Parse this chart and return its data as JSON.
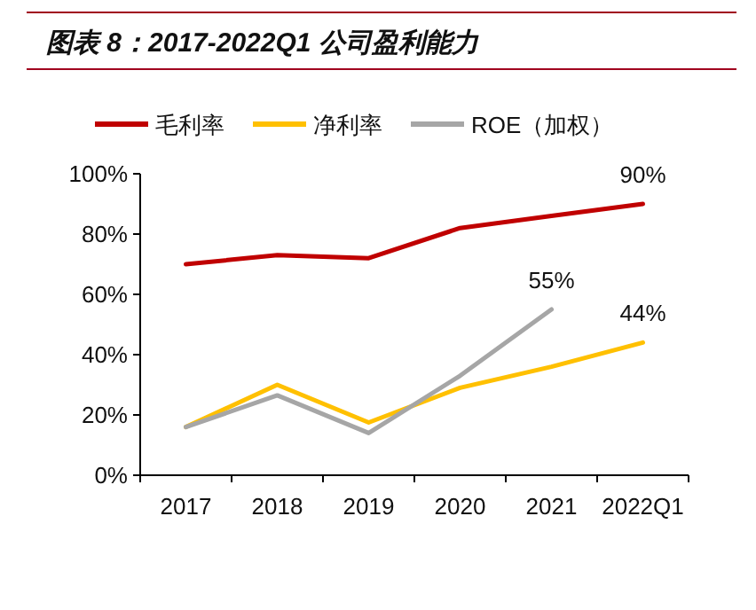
{
  "chart_data": {
    "type": "line",
    "title": "图表 8：2017-2022Q1 公司盈利能力",
    "categories": [
      "2017",
      "2018",
      "2019",
      "2020",
      "2021",
      "2022Q1"
    ],
    "series": [
      {
        "name": "毛利率",
        "color": "#c00000",
        "values": [
          70,
          73,
          72,
          82,
          86,
          90
        ]
      },
      {
        "name": "净利率",
        "color": "#ffc000",
        "values": [
          16,
          30,
          17.5,
          29,
          36,
          44
        ]
      },
      {
        "name": "ROE（加权）",
        "color": "#a6a6a6",
        "values": [
          16,
          26.5,
          14,
          33,
          55,
          null
        ]
      }
    ],
    "ylim": [
      0,
      100
    ],
    "yticks": [
      {
        "value": 0,
        "label": "0%"
      },
      {
        "value": 20,
        "label": "20%"
      },
      {
        "value": 40,
        "label": "40%"
      },
      {
        "value": 60,
        "label": "60%"
      },
      {
        "value": 80,
        "label": "80%"
      },
      {
        "value": 100,
        "label": "100%"
      }
    ],
    "annotations": [
      {
        "text": "90%",
        "x": "2022Q1",
        "y": 90
      },
      {
        "text": "55%",
        "x": "2021",
        "y": 55
      },
      {
        "text": "44%",
        "x": "2022Q1",
        "y": 44
      }
    ],
    "legend": "top",
    "grid": false,
    "marker": "none",
    "line_style": "solid"
  }
}
